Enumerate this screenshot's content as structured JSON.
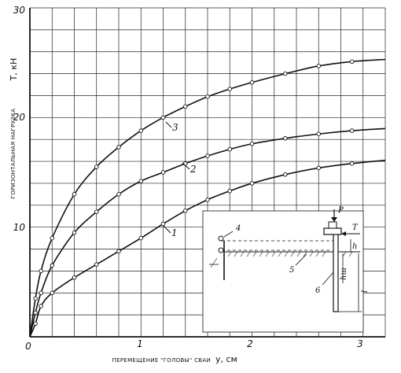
{
  "chart_data": {
    "type": "line",
    "title": "",
    "ylabel": "ГОРИЗОНТАЛЬНАЯ НАГРУЗКА",
    "ylabel_symbol": "T, кН",
    "xlabel": "ПЕРЕМЕЩЕНИЕ \"ГОЛОВЫ\" СВАИ",
    "xlabel_symbol": "y, см",
    "xlim": [
      0,
      3.2
    ],
    "ylim": [
      0,
      30
    ],
    "xticks": [
      "0",
      "1",
      "2",
      "3"
    ],
    "yticks": [
      "10",
      "20",
      "30"
    ],
    "grid": true,
    "series": [
      {
        "name": "1",
        "x": [
          0,
          0.05,
          0.1,
          0.2,
          0.4,
          0.6,
          0.8,
          1.0,
          1.2,
          1.4,
          1.6,
          1.8,
          2.0,
          2.3,
          2.6,
          2.9,
          3.2
        ],
        "y": [
          0,
          1.2,
          2.8,
          4.0,
          5.4,
          6.6,
          7.8,
          9.0,
          10.3,
          11.5,
          12.5,
          13.3,
          14.0,
          14.8,
          15.4,
          15.8,
          16.1
        ]
      },
      {
        "name": "2",
        "x": [
          0,
          0.05,
          0.1,
          0.2,
          0.4,
          0.6,
          0.8,
          1.0,
          1.2,
          1.4,
          1.6,
          1.8,
          2.0,
          2.3,
          2.6,
          2.9,
          3.2
        ],
        "y": [
          0,
          2.2,
          4.0,
          6.5,
          9.5,
          11.4,
          13.0,
          14.2,
          15.0,
          15.8,
          16.5,
          17.1,
          17.6,
          18.1,
          18.5,
          18.8,
          19.0
        ]
      },
      {
        "name": "3",
        "x": [
          0,
          0.05,
          0.1,
          0.2,
          0.4,
          0.6,
          0.8,
          1.0,
          1.2,
          1.4,
          1.6,
          1.8,
          2.0,
          2.3,
          2.6,
          2.9,
          3.2
        ],
        "y": [
          0,
          3.5,
          6.0,
          9.0,
          13.0,
          15.5,
          17.3,
          18.8,
          20.0,
          21.0,
          21.9,
          22.6,
          23.2,
          24.0,
          24.7,
          25.1,
          25.3
        ]
      }
    ],
    "inset": {
      "labels": [
        "P",
        "T",
        "4",
        "h",
        "5",
        "hш",
        "6",
        "l"
      ]
    }
  }
}
